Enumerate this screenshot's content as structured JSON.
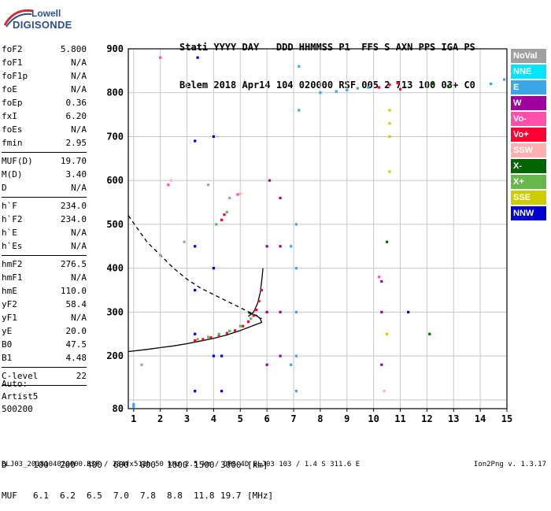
{
  "logo": {
    "line1": "Lowell",
    "line2": "DIGISONDE"
  },
  "header": {
    "labels": [
      "Stati",
      "YYYY",
      "DAY",
      "DDD",
      "HHMMSS",
      "P1",
      "FFS",
      "S",
      "AXN",
      "PPS",
      "IGA",
      "PS"
    ],
    "values": [
      "Belem",
      "2018",
      "Apr14",
      "104",
      "020000",
      "RSF",
      "005",
      "2",
      "713",
      "100",
      "03+",
      "C0"
    ]
  },
  "params_groups": [
    [
      {
        "k": "foF2",
        "v": "5.800"
      },
      {
        "k": "foF1",
        "v": "N/A"
      },
      {
        "k": "foF1p",
        "v": "N/A"
      },
      {
        "k": "foE",
        "v": "N/A"
      },
      {
        "k": "foEp",
        "v": "0.36"
      },
      {
        "k": "fxI",
        "v": "6.20"
      },
      {
        "k": "foEs",
        "v": "N/A"
      },
      {
        "k": "fmin",
        "v": "2.95"
      }
    ],
    [
      {
        "k": "MUF(D)",
        "v": "19.70"
      },
      {
        "k": "M(D)",
        "v": "3.40"
      },
      {
        "k": "D",
        "v": "N/A"
      }
    ],
    [
      {
        "k": "h`F",
        "v": "234.0"
      },
      {
        "k": "h`F2",
        "v": "234.0"
      },
      {
        "k": "h`E",
        "v": "N/A"
      },
      {
        "k": "h`Es",
        "v": "N/A"
      }
    ],
    [
      {
        "k": "hmF2",
        "v": "276.5"
      },
      {
        "k": "hmF1",
        "v": "N/A"
      },
      {
        "k": "hmE",
        "v": "110.0"
      },
      {
        "k": "yF2",
        "v": "58.4"
      },
      {
        "k": "yF1",
        "v": "N/A"
      },
      {
        "k": "yE",
        "v": "20.0"
      },
      {
        "k": "B0",
        "v": "47.5"
      },
      {
        "k": "B1",
        "v": "4.48"
      }
    ],
    [
      {
        "k": "C-level",
        "v": "22"
      }
    ]
  ],
  "auto": {
    "line1": "Auto:",
    "line2": "Artist5",
    "line3": "500200"
  },
  "legend": [
    {
      "label": "NoVal",
      "color": "#a0a0a0"
    },
    {
      "label": "NNE",
      "color": "#00e5ff"
    },
    {
      "label": "E",
      "color": "#3aa6e6"
    },
    {
      "label": "W",
      "color": "#a000a0"
    },
    {
      "label": "Vo-",
      "color": "#ff4fa8"
    },
    {
      "label": "Vo+",
      "color": "#ff0033"
    },
    {
      "label": "SSW",
      "color": "#ffb0b0"
    },
    {
      "label": "X-",
      "color": "#006400"
    },
    {
      "label": "X+",
      "color": "#66b84a"
    },
    {
      "label": "SSE",
      "color": "#cccc00"
    },
    {
      "label": "NNW",
      "color": "#0000cc"
    }
  ],
  "chart_data": {
    "type": "scatter",
    "xlim": [
      0.8,
      15
    ],
    "ylim": [
      80,
      900
    ],
    "x_ticks": [
      1,
      2,
      3,
      4,
      5,
      6,
      7,
      8,
      9,
      10,
      11,
      12,
      13,
      14,
      15
    ],
    "y_ticks": [
      80,
      100,
      200,
      300,
      400,
      500,
      600,
      700,
      800,
      900
    ],
    "y_tick_labels": [
      80,
      200,
      300,
      400,
      500,
      600,
      700,
      800,
      900
    ],
    "grid": true,
    "series": [
      {
        "name": "Vo+",
        "color": "#ff0033",
        "points": [
          [
            3.3,
            235
          ],
          [
            3.6,
            238
          ],
          [
            3.9,
            242
          ],
          [
            4.2,
            246
          ],
          [
            4.5,
            252
          ],
          [
            4.8,
            258
          ],
          [
            5.1,
            268
          ],
          [
            5.3,
            278
          ],
          [
            5.5,
            292
          ],
          [
            5.6,
            305
          ],
          [
            5.7,
            325
          ],
          [
            5.8,
            350
          ],
          [
            4.3,
            510
          ],
          [
            4.4,
            522
          ],
          [
            10.2,
            812
          ],
          [
            10.6,
            818
          ],
          [
            10.9,
            822
          ],
          [
            11.0,
            808
          ]
        ]
      },
      {
        "name": "X+",
        "color": "#66b84a",
        "points": [
          [
            3.4,
            238
          ],
          [
            3.8,
            243
          ],
          [
            4.2,
            250
          ],
          [
            4.6,
            257
          ],
          [
            5.0,
            268
          ],
          [
            5.4,
            285
          ],
          [
            4.1,
            500
          ],
          [
            4.5,
            528
          ]
        ]
      },
      {
        "name": "E",
        "color": "#3aa6e6",
        "points": [
          [
            1.0,
            90
          ],
          [
            1.0,
            85
          ],
          [
            7.1,
            120
          ],
          [
            7.1,
            200
          ],
          [
            7.1,
            300
          ],
          [
            7.1,
            400
          ],
          [
            7.1,
            500
          ],
          [
            7.2,
            760
          ],
          [
            7.2,
            860
          ],
          [
            8.0,
            800
          ],
          [
            8.6,
            803
          ],
          [
            9.0,
            806
          ],
          [
            9.4,
            810
          ],
          [
            9.8,
            812
          ],
          [
            14.4,
            820
          ],
          [
            14.9,
            830
          ],
          [
            6.9,
            180
          ],
          [
            6.9,
            450
          ]
        ]
      },
      {
        "name": "W",
        "color": "#a000a0",
        "points": [
          [
            6.0,
            180
          ],
          [
            6.0,
            300
          ],
          [
            6.0,
            450
          ],
          [
            6.1,
            600
          ],
          [
            6.5,
            200
          ],
          [
            6.5,
            300
          ],
          [
            6.5,
            450
          ],
          [
            6.5,
            560
          ],
          [
            10.3,
            180
          ],
          [
            10.3,
            300
          ],
          [
            10.3,
            370
          ]
        ]
      },
      {
        "name": "NNW",
        "color": "#0000cc",
        "points": [
          [
            3.3,
            120
          ],
          [
            3.3,
            250
          ],
          [
            3.3,
            350
          ],
          [
            3.3,
            450
          ],
          [
            3.3,
            690
          ],
          [
            4.0,
            200
          ],
          [
            4.0,
            400
          ],
          [
            4.0,
            700
          ],
          [
            4.3,
            120
          ],
          [
            4.3,
            200
          ],
          [
            11.3,
            300
          ],
          [
            3.4,
            880
          ]
        ]
      },
      {
        "name": "NoVal",
        "color": "#a0a0a0",
        "points": [
          [
            2.0,
            430
          ],
          [
            2.9,
            460
          ],
          [
            3.8,
            590
          ],
          [
            4.6,
            560
          ],
          [
            1.3,
            180
          ]
        ]
      },
      {
        "name": "SSE",
        "color": "#cccc00",
        "points": [
          [
            10.6,
            700
          ],
          [
            10.6,
            730
          ],
          [
            10.6,
            760
          ],
          [
            10.6,
            620
          ],
          [
            10.5,
            250
          ]
        ]
      },
      {
        "name": "Vo-",
        "color": "#ff4fa8",
        "points": [
          [
            2.0,
            880
          ],
          [
            2.3,
            590
          ],
          [
            4.9,
            568
          ],
          [
            10.2,
            380
          ]
        ]
      },
      {
        "name": "X-",
        "color": "#006400",
        "points": [
          [
            10.5,
            460
          ],
          [
            12.1,
            250
          ],
          [
            12.8,
            815
          ],
          [
            12.2,
            820
          ]
        ]
      },
      {
        "name": "SSW",
        "color": "#ffb0b0",
        "points": [
          [
            2.4,
            600
          ],
          [
            5.0,
            570
          ],
          [
            10.4,
            120
          ]
        ]
      }
    ],
    "traces": [
      {
        "name": "profile",
        "style": "solid",
        "points": [
          [
            0.8,
            210
          ],
          [
            1.5,
            215
          ],
          [
            2.0,
            219
          ],
          [
            2.5,
            223
          ],
          [
            3.0,
            228
          ],
          [
            3.5,
            234
          ],
          [
            4.0,
            240
          ],
          [
            4.5,
            248
          ],
          [
            5.0,
            258
          ],
          [
            5.3,
            265
          ],
          [
            5.6,
            272
          ],
          [
            5.8,
            276.5
          ],
          [
            5.75,
            285
          ],
          [
            5.6,
            293
          ],
          [
            5.3,
            298
          ]
        ]
      },
      {
        "name": "trace-hook",
        "style": "solid",
        "points": [
          [
            5.3,
            290
          ],
          [
            5.5,
            300
          ],
          [
            5.65,
            320
          ],
          [
            5.75,
            345
          ],
          [
            5.82,
            380
          ],
          [
            5.85,
            400
          ]
        ]
      },
      {
        "name": "MUF-curve",
        "style": "dashed",
        "points": [
          [
            0.8,
            520
          ],
          [
            1.5,
            460
          ],
          [
            2.0,
            430
          ],
          [
            2.5,
            400
          ],
          [
            3.0,
            375
          ],
          [
            3.5,
            355
          ],
          [
            4.0,
            340
          ],
          [
            4.5,
            325
          ],
          [
            5.0,
            310
          ],
          [
            5.5,
            295
          ],
          [
            5.8,
            285
          ]
        ]
      }
    ]
  },
  "dmuf": {
    "d_label": "D",
    "d_values": [
      "100",
      "200",
      "400",
      "600",
      "800",
      "1000",
      "1500",
      "3000",
      "[km]"
    ],
    "muf_label": "MUF",
    "muf_values": [
      "6.1",
      "6.2",
      "6.5",
      "7.0",
      "7.8",
      "8.8",
      "11.8",
      "19.7",
      "[MHz]"
    ]
  },
  "footer": {
    "left": "BLJ03_2018104020000.RSF / 284fx512h 50 kHz 2.5 km / DPS-4D BLJ03 103 / 1.4 S 311.6 E",
    "right": "Ion2Png v. 1.3.17"
  }
}
